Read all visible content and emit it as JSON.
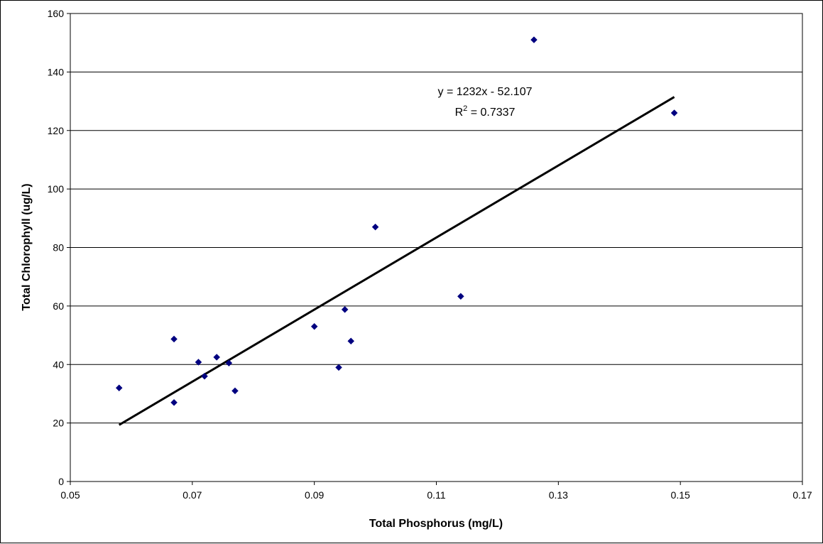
{
  "chart_data": {
    "type": "scatter",
    "title": "",
    "xlabel": "Total Phosphorus (mg/L)",
    "ylabel": "Total Chlorophyll (ug/L)",
    "xlim": [
      0.05,
      0.17
    ],
    "ylim": [
      0,
      160
    ],
    "x_ticks": [
      "0.05",
      "0.07",
      "0.09",
      "0.11",
      "0.13",
      "0.15",
      "0.17"
    ],
    "y_ticks": [
      "0",
      "20",
      "40",
      "60",
      "80",
      "100",
      "120",
      "140",
      "160"
    ],
    "grid": "horizontal",
    "legend": "none",
    "marker_color": "#000080",
    "series": [
      {
        "points": [
          {
            "x": 0.058,
            "y": 32
          },
          {
            "x": 0.067,
            "y": 48.7
          },
          {
            "x": 0.067,
            "y": 27
          },
          {
            "x": 0.071,
            "y": 40.8
          },
          {
            "x": 0.072,
            "y": 36
          },
          {
            "x": 0.074,
            "y": 42.5
          },
          {
            "x": 0.076,
            "y": 40.5
          },
          {
            "x": 0.077,
            "y": 31
          },
          {
            "x": 0.09,
            "y": 53
          },
          {
            "x": 0.094,
            "y": 39
          },
          {
            "x": 0.095,
            "y": 58.8
          },
          {
            "x": 0.096,
            "y": 48
          },
          {
            "x": 0.1,
            "y": 87
          },
          {
            "x": 0.114,
            "y": 63.3
          },
          {
            "x": 0.126,
            "y": 151
          },
          {
            "x": 0.149,
            "y": 126
          }
        ]
      }
    ],
    "trendline": {
      "type": "linear",
      "slope": 1232,
      "intercept": -52.107,
      "x_start": 0.058,
      "x_end": 0.149,
      "equation_label": "y = 1232x - 52.107",
      "r2_prefix": "R",
      "r2_exponent": "2",
      "r2_value_text": " = 0.7337"
    }
  }
}
